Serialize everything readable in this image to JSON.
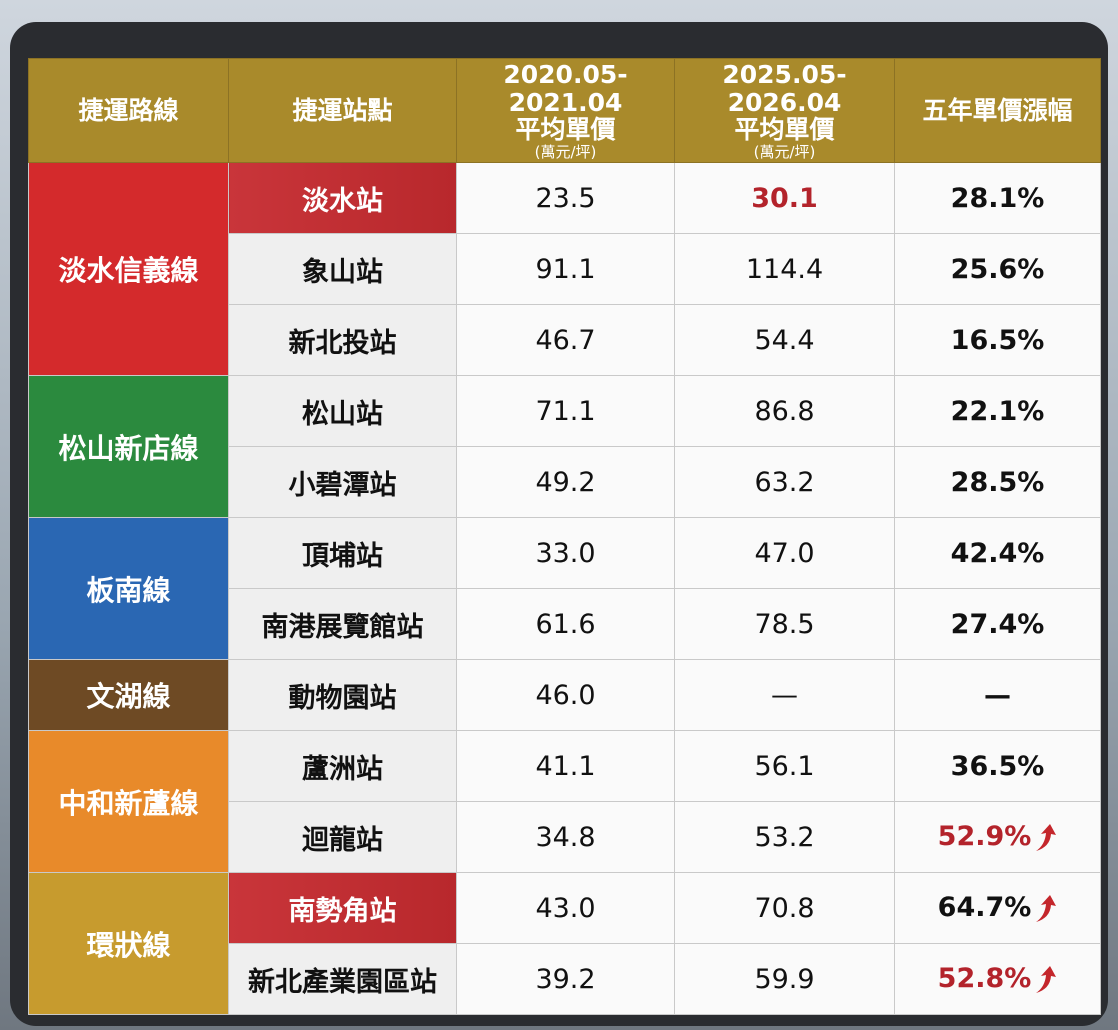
{
  "table": {
    "header": [
      [
        "捷運路線"
      ],
      [
        "捷運站點"
      ],
      [
        "2020.05-2021.04",
        "平均單價",
        "(萬元/坪)"
      ],
      [
        "2025.05-2026.04",
        "平均單價",
        "(萬元/坪)"
      ],
      [
        "五年單價漲幅"
      ]
    ],
    "groups": [
      {
        "name": "淡水信義線",
        "color": "#d42a2c",
        "rows": [
          [
            "淡水站",
            "23.5",
            "30.1",
            "28.1%"
          ],
          [
            "象山站",
            "91.1",
            "114.4",
            "25.6%"
          ],
          [
            "新北投站",
            "46.7",
            "54.4",
            "16.5%"
          ]
        ]
      },
      {
        "name": "松山新店線",
        "color": "#2b8a3e",
        "rows": [
          [
            "松山站",
            "71.1",
            "86.8",
            "22.1%"
          ],
          [
            "小碧潭站",
            "49.2",
            "63.2",
            "28.5%"
          ]
        ]
      },
      {
        "name": "板南線",
        "color": "#2a67b3",
        "rows": [
          [
            "頂埔站",
            "33.0",
            "47.0",
            "42.4%"
          ],
          [
            "南港展覽館站",
            "61.6",
            "78.5",
            "27.4%"
          ]
        ]
      },
      {
        "name": "文湖線",
        "color": "#6e4a24",
        "rows": [
          [
            "動物園站",
            "46.0",
            "—",
            "—"
          ]
        ]
      },
      {
        "name": "中和新蘆線",
        "color": "#e88a2a",
        "rows": [
          [
            "蘆洲站",
            "41.1",
            "56.1",
            "36.5%"
          ],
          [
            "迴龍站",
            "34.8",
            "53.2",
            "52.9%"
          ]
        ]
      },
      {
        "name": "環狀線",
        "color": "#c79b2e",
        "rows": [
          [
            "南勢角站",
            "43.0",
            "70.8",
            "64.7%"
          ],
          [
            "新北產業園區站",
            "39.2",
            "59.9",
            "52.8%"
          ]
        ]
      }
    ]
  }
}
